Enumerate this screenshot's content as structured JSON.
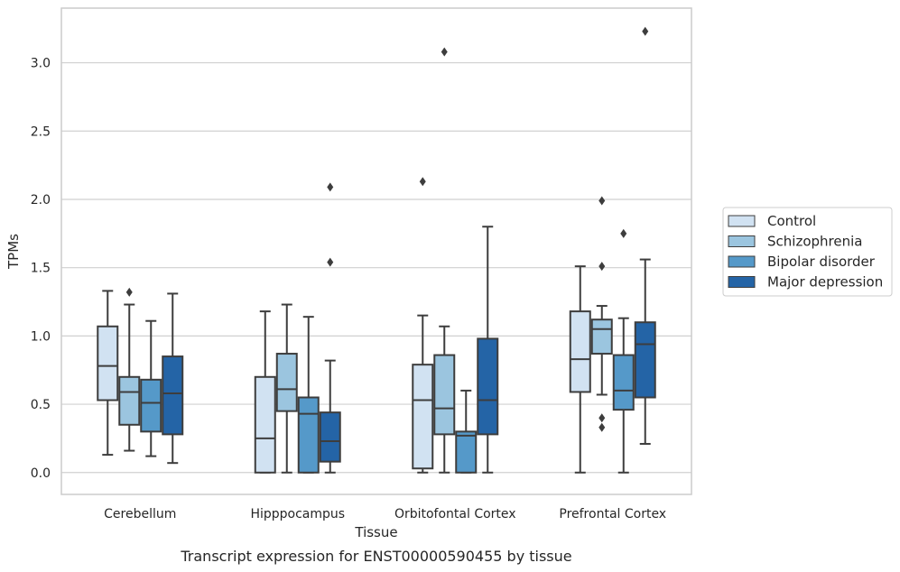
{
  "caption": "Transcript expression for ENST00000590455 by tissue",
  "chart_data": {
    "type": "boxplot",
    "xlabel": "Tissue",
    "ylabel": "TPMs",
    "ylim": [
      -0.16,
      3.4
    ],
    "yticks": [
      "0.0",
      "0.5",
      "1.0",
      "1.5",
      "2.0",
      "2.5",
      "3.0"
    ],
    "grid": "horizontal",
    "legend_position": "right",
    "categories": [
      "Cerebellum",
      "Hipppocampus",
      "Orbitofontal Cortex",
      "Prefrontal Cortex"
    ],
    "series": [
      {
        "name": "Control",
        "color": "#d1e2f2",
        "boxes": [
          {
            "whislo": 0.13,
            "q1": 0.53,
            "med": 0.78,
            "q3": 1.07,
            "whishi": 1.33,
            "fliers": []
          },
          {
            "whislo": 0.0,
            "q1": 0.0,
            "med": 0.25,
            "q3": 0.7,
            "whishi": 1.18,
            "fliers": []
          },
          {
            "whislo": 0.0,
            "q1": 0.03,
            "med": 0.53,
            "q3": 0.79,
            "whishi": 1.15,
            "fliers": [
              2.13
            ]
          },
          {
            "whislo": 0.0,
            "q1": 0.59,
            "med": 0.83,
            "q3": 1.18,
            "whishi": 1.51,
            "fliers": []
          }
        ]
      },
      {
        "name": "Schizophrenia",
        "color": "#9bc5df",
        "boxes": [
          {
            "whislo": 0.16,
            "q1": 0.35,
            "med": 0.59,
            "q3": 0.7,
            "whishi": 1.23,
            "fliers": [
              1.32
            ]
          },
          {
            "whislo": 0.0,
            "q1": 0.45,
            "med": 0.61,
            "q3": 0.87,
            "whishi": 1.23,
            "fliers": []
          },
          {
            "whislo": 0.0,
            "q1": 0.28,
            "med": 0.47,
            "q3": 0.86,
            "whishi": 1.07,
            "fliers": [
              3.08
            ]
          },
          {
            "whislo": 0.57,
            "q1": 0.87,
            "med": 1.05,
            "q3": 1.12,
            "whishi": 1.22,
            "fliers": [
              1.99,
              1.51,
              0.4,
              0.33
            ]
          }
        ]
      },
      {
        "name": "Bipolar disorder",
        "color": "#5599c9",
        "boxes": [
          {
            "whislo": 0.12,
            "q1": 0.3,
            "med": 0.51,
            "q3": 0.68,
            "whishi": 1.11,
            "fliers": []
          },
          {
            "whislo": 0.0,
            "q1": 0.0,
            "med": 0.43,
            "q3": 0.55,
            "whishi": 1.14,
            "fliers": []
          },
          {
            "whislo": 0.0,
            "q1": 0.0,
            "med": 0.27,
            "q3": 0.3,
            "whishi": 0.6,
            "fliers": []
          },
          {
            "whislo": 0.0,
            "q1": 0.46,
            "med": 0.6,
            "q3": 0.86,
            "whishi": 1.13,
            "fliers": [
              1.75
            ]
          }
        ]
      },
      {
        "name": "Major depression",
        "color": "#2464a6",
        "boxes": [
          {
            "whislo": 0.07,
            "q1": 0.28,
            "med": 0.58,
            "q3": 0.85,
            "whishi": 1.31,
            "fliers": []
          },
          {
            "whislo": 0.0,
            "q1": 0.08,
            "med": 0.23,
            "q3": 0.44,
            "whishi": 0.82,
            "fliers": [
              2.09,
              1.54
            ]
          },
          {
            "whislo": 0.0,
            "q1": 0.28,
            "med": 0.53,
            "q3": 0.98,
            "whishi": 1.8,
            "fliers": []
          },
          {
            "whislo": 0.21,
            "q1": 0.55,
            "med": 0.94,
            "q3": 1.1,
            "whishi": 1.56,
            "fliers": [
              3.23
            ]
          }
        ]
      }
    ]
  }
}
